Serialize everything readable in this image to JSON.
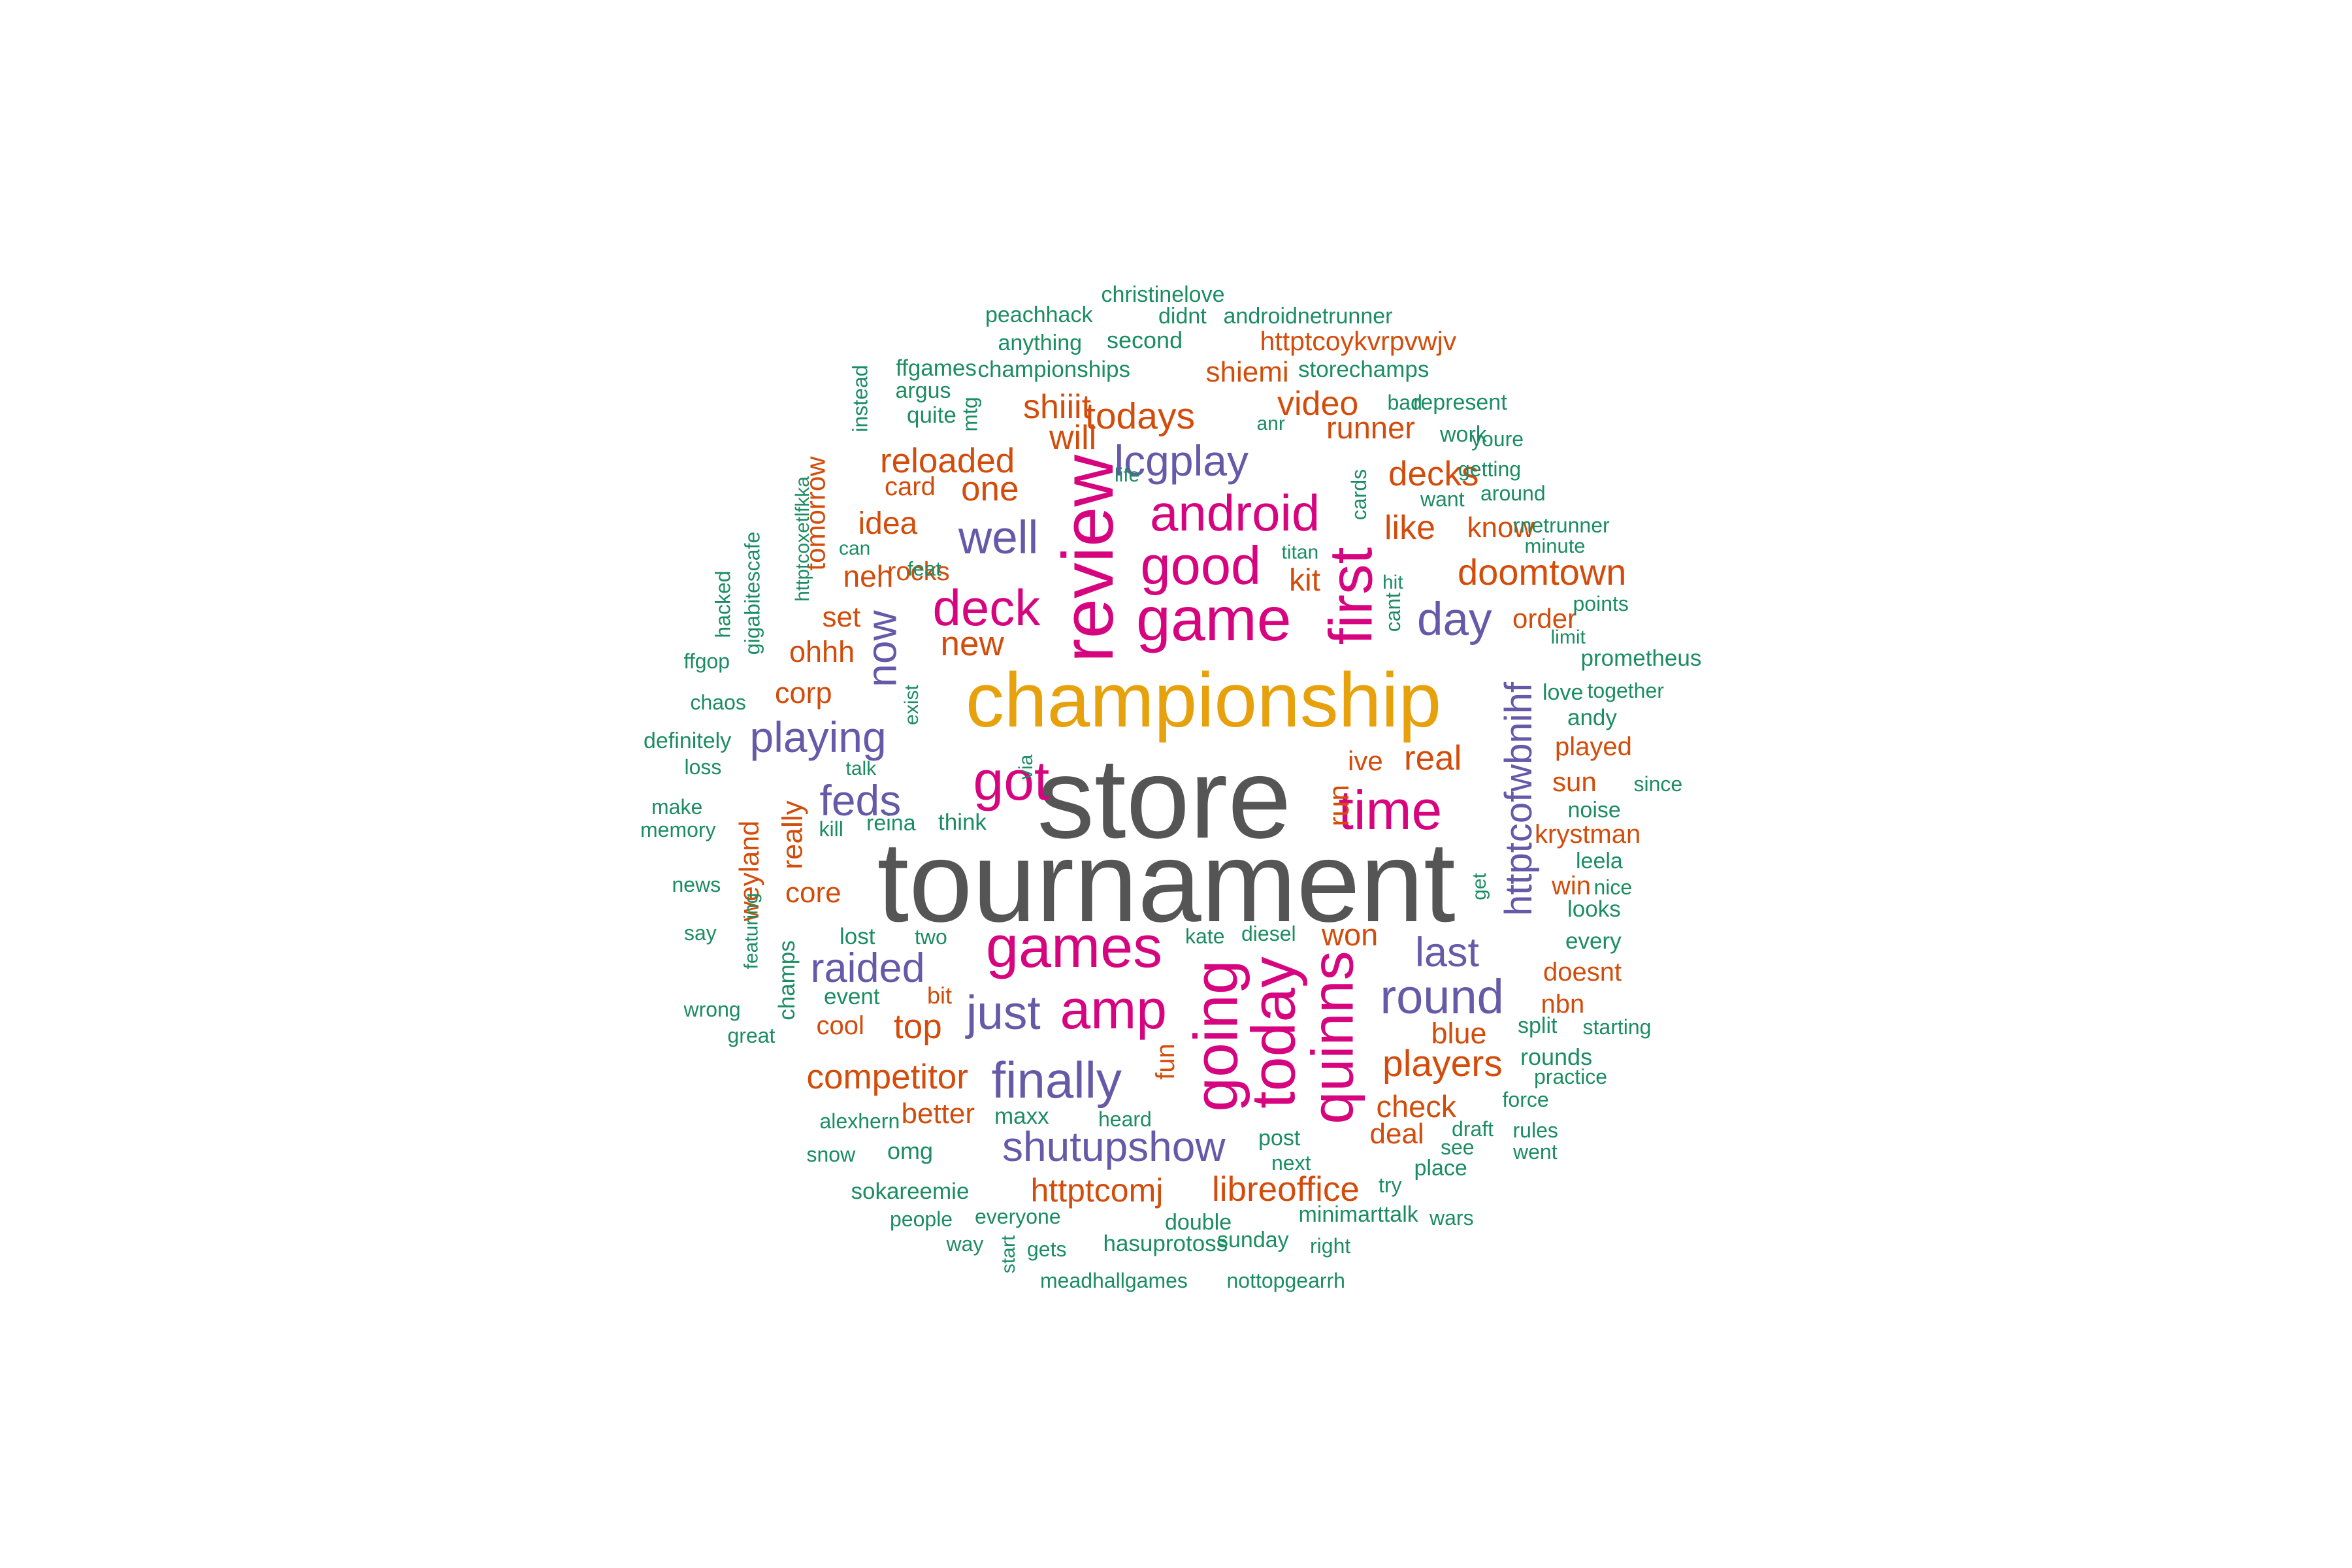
{
  "palette": {
    "gray": "#555555",
    "gold": "#E6A10C",
    "magenta": "#D6047F",
    "purple": "#6559A8",
    "orange": "#D24C0B",
    "green": "#1B8C63"
  },
  "words": [
    {
      "text": "store",
      "c": "gray",
      "r": 0
    },
    {
      "text": "tournament",
      "c": "gray",
      "r": 0
    },
    {
      "text": "championship",
      "c": "gold",
      "r": 0
    },
    {
      "text": "game",
      "c": "magenta",
      "r": 0
    },
    {
      "text": "good",
      "c": "magenta",
      "r": 0
    },
    {
      "text": "android",
      "c": "magenta",
      "r": 0
    },
    {
      "text": "review",
      "c": "magenta",
      "r": 1
    },
    {
      "text": "first",
      "c": "magenta",
      "r": 1
    },
    {
      "text": "deck",
      "c": "magenta",
      "r": 0
    },
    {
      "text": "got",
      "c": "magenta",
      "r": 0
    },
    {
      "text": "time",
      "c": "magenta",
      "r": 0
    },
    {
      "text": "games",
      "c": "magenta",
      "r": 0
    },
    {
      "text": "amp",
      "c": "magenta",
      "r": 0
    },
    {
      "text": "going",
      "c": "magenta",
      "r": 1
    },
    {
      "text": "today",
      "c": "magenta",
      "r": 1
    },
    {
      "text": "quinns",
      "c": "magenta",
      "r": 1
    },
    {
      "text": "well",
      "c": "purple",
      "r": 0
    },
    {
      "text": "lcgplay",
      "c": "purple",
      "r": 0
    },
    {
      "text": "playing",
      "c": "purple",
      "r": 0
    },
    {
      "text": "feds",
      "c": "purple",
      "r": 0
    },
    {
      "text": "now",
      "c": "purple",
      "r": 1
    },
    {
      "text": "day",
      "c": "purple",
      "r": 0
    },
    {
      "text": "httptcofwbnihf",
      "c": "purple",
      "r": 1
    },
    {
      "text": "round",
      "c": "purple",
      "r": 0
    },
    {
      "text": "last",
      "c": "purple",
      "r": 0
    },
    {
      "text": "raided",
      "c": "purple",
      "r": 0
    },
    {
      "text": "just",
      "c": "purple",
      "r": 0
    },
    {
      "text": "finally",
      "c": "purple",
      "r": 0
    },
    {
      "text": "shutupshow",
      "c": "purple",
      "r": 0
    },
    {
      "text": "todays",
      "c": "orange",
      "r": 0
    },
    {
      "text": "shiiit",
      "c": "orange",
      "r": 0
    },
    {
      "text": "will",
      "c": "orange",
      "r": 0
    },
    {
      "text": "video",
      "c": "orange",
      "r": 0
    },
    {
      "text": "runner",
      "c": "orange",
      "r": 0
    },
    {
      "text": "reloaded",
      "c": "orange",
      "r": 0
    },
    {
      "text": "one",
      "c": "orange",
      "r": 0
    },
    {
      "text": "decks",
      "c": "orange",
      "r": 0
    },
    {
      "text": "like",
      "c": "orange",
      "r": 0
    },
    {
      "text": "doomtown",
      "c": "orange",
      "r": 0
    },
    {
      "text": "kit",
      "c": "orange",
      "r": 0
    },
    {
      "text": "idea",
      "c": "orange",
      "r": 0
    },
    {
      "text": "neh",
      "c": "orange",
      "r": 0
    },
    {
      "text": "new",
      "c": "orange",
      "r": 0
    },
    {
      "text": "set",
      "c": "orange",
      "r": 0
    },
    {
      "text": "ohhh",
      "c": "orange",
      "r": 0
    },
    {
      "text": "corp",
      "c": "orange",
      "r": 0
    },
    {
      "text": "real",
      "c": "orange",
      "r": 0
    },
    {
      "text": "ive",
      "c": "orange",
      "r": 0
    },
    {
      "text": "run",
      "c": "orange",
      "r": 1
    },
    {
      "text": "won",
      "c": "orange",
      "r": 0
    },
    {
      "text": "players",
      "c": "orange",
      "r": 0
    },
    {
      "text": "blue",
      "c": "orange",
      "r": 0
    },
    {
      "text": "check",
      "c": "orange",
      "r": 0
    },
    {
      "text": "deal",
      "c": "orange",
      "r": 0
    },
    {
      "text": "top",
      "c": "orange",
      "r": 0
    },
    {
      "text": "competitor",
      "c": "orange",
      "r": 0
    },
    {
      "text": "better",
      "c": "orange",
      "r": 0
    },
    {
      "text": "httptcomj",
      "c": "orange",
      "r": 0
    },
    {
      "text": "libreoffice",
      "c": "orange",
      "r": 0
    },
    {
      "text": "core",
      "c": "orange",
      "r": 0
    },
    {
      "text": "really",
      "c": "orange",
      "r": 1
    },
    {
      "text": "weyland",
      "c": "orange",
      "r": 1
    },
    {
      "text": "tomorrow",
      "c": "orange",
      "r": 1
    },
    {
      "text": "card",
      "c": "orange",
      "r": 0
    },
    {
      "text": "rocks",
      "c": "orange",
      "r": 0
    },
    {
      "text": "httptcoykvrpvwjv",
      "c": "orange",
      "r": 0
    },
    {
      "text": "shiemi",
      "c": "orange",
      "r": 0
    },
    {
      "text": "know",
      "c": "orange",
      "r": 0
    },
    {
      "text": "order",
      "c": "orange",
      "r": 0
    },
    {
      "text": "played",
      "c": "orange",
      "r": 0
    },
    {
      "text": "sun",
      "c": "orange",
      "r": 0
    },
    {
      "text": "krystman",
      "c": "orange",
      "r": 0
    },
    {
      "text": "win",
      "c": "orange",
      "r": 0
    },
    {
      "text": "doesnt",
      "c": "orange",
      "r": 0
    },
    {
      "text": "nbn",
      "c": "orange",
      "r": 0
    },
    {
      "text": "fun",
      "c": "orange",
      "r": 1
    },
    {
      "text": "bit",
      "c": "orange",
      "r": 0
    },
    {
      "text": "cool",
      "c": "orange",
      "r": 0
    },
    {
      "text": "christinelove",
      "c": "green",
      "r": 0
    },
    {
      "text": "peachhack",
      "c": "green",
      "r": 0
    },
    {
      "text": "didnt",
      "c": "green",
      "r": 0
    },
    {
      "text": "androidnetrunner",
      "c": "green",
      "r": 0
    },
    {
      "text": "anything",
      "c": "green",
      "r": 0
    },
    {
      "text": "second",
      "c": "green",
      "r": 0
    },
    {
      "text": "ffgames",
      "c": "green",
      "r": 0
    },
    {
      "text": "championships",
      "c": "green",
      "r": 0
    },
    {
      "text": "storechamps",
      "c": "green",
      "r": 0
    },
    {
      "text": "argus",
      "c": "green",
      "r": 0
    },
    {
      "text": "instead",
      "c": "green",
      "r": 1
    },
    {
      "text": "quite",
      "c": "green",
      "r": 0
    },
    {
      "text": "mtg",
      "c": "green",
      "r": 1
    },
    {
      "text": "bad",
      "c": "green",
      "r": 0
    },
    {
      "text": "represent",
      "c": "green",
      "r": 0
    },
    {
      "text": "anr",
      "c": "green",
      "r": 0
    },
    {
      "text": "work",
      "c": "green",
      "r": 0
    },
    {
      "text": "youre",
      "c": "green",
      "r": 0
    },
    {
      "text": "life",
      "c": "green",
      "r": 0
    },
    {
      "text": "getting",
      "c": "green",
      "r": 0
    },
    {
      "text": "cards",
      "c": "green",
      "r": 1
    },
    {
      "text": "want",
      "c": "green",
      "r": 0
    },
    {
      "text": "around",
      "c": "green",
      "r": 0
    },
    {
      "text": "rnetrunner",
      "c": "green",
      "r": 0
    },
    {
      "text": "httptcoxetlfkka",
      "c": "green",
      "r": 1
    },
    {
      "text": "can",
      "c": "green",
      "r": 0
    },
    {
      "text": "titan",
      "c": "green",
      "r": 0
    },
    {
      "text": "minute",
      "c": "green",
      "r": 0
    },
    {
      "text": "gigabitescafe",
      "c": "green",
      "r": 1
    },
    {
      "text": "feat",
      "c": "green",
      "r": 0
    },
    {
      "text": "hit",
      "c": "green",
      "r": 0
    },
    {
      "text": "hacked",
      "c": "green",
      "r": 1
    },
    {
      "text": "cant",
      "c": "green",
      "r": 1
    },
    {
      "text": "points",
      "c": "green",
      "r": 0
    },
    {
      "text": "limit",
      "c": "green",
      "r": 0
    },
    {
      "text": "ffgop",
      "c": "green",
      "r": 0
    },
    {
      "text": "prometheus",
      "c": "green",
      "r": 0
    },
    {
      "text": "chaos",
      "c": "green",
      "r": 0
    },
    {
      "text": "love",
      "c": "green",
      "r": 0
    },
    {
      "text": "together",
      "c": "green",
      "r": 0
    },
    {
      "text": "exist",
      "c": "green",
      "r": 1
    },
    {
      "text": "andy",
      "c": "green",
      "r": 0
    },
    {
      "text": "definitely",
      "c": "green",
      "r": 0
    },
    {
      "text": "talk",
      "c": "green",
      "r": 0
    },
    {
      "text": "via",
      "c": "green",
      "r": 1
    },
    {
      "text": "loss",
      "c": "green",
      "r": 0
    },
    {
      "text": "since",
      "c": "green",
      "r": 0
    },
    {
      "text": "make",
      "c": "green",
      "r": 0
    },
    {
      "text": "kill",
      "c": "green",
      "r": 0
    },
    {
      "text": "reina",
      "c": "green",
      "r": 0
    },
    {
      "text": "think",
      "c": "green",
      "r": 0
    },
    {
      "text": "noise",
      "c": "green",
      "r": 0
    },
    {
      "text": "memory",
      "c": "green",
      "r": 0
    },
    {
      "text": "leela",
      "c": "green",
      "r": 0
    },
    {
      "text": "get",
      "c": "green",
      "r": 1
    },
    {
      "text": "news",
      "c": "green",
      "r": 0
    },
    {
      "text": "nice",
      "c": "green",
      "r": 0
    },
    {
      "text": "looks",
      "c": "green",
      "r": 0
    },
    {
      "text": "say",
      "c": "green",
      "r": 0
    },
    {
      "text": "featuring",
      "c": "green",
      "r": 1
    },
    {
      "text": "lost",
      "c": "green",
      "r": 0
    },
    {
      "text": "two",
      "c": "green",
      "r": 0
    },
    {
      "text": "kate",
      "c": "green",
      "r": 0
    },
    {
      "text": "diesel",
      "c": "green",
      "r": 0
    },
    {
      "text": "every",
      "c": "green",
      "r": 0
    },
    {
      "text": "champs",
      "c": "green",
      "r": 1
    },
    {
      "text": "event",
      "c": "green",
      "r": 0
    },
    {
      "text": "wrong",
      "c": "green",
      "r": 0
    },
    {
      "text": "great",
      "c": "green",
      "r": 0
    },
    {
      "text": "split",
      "c": "green",
      "r": 0
    },
    {
      "text": "starting",
      "c": "green",
      "r": 0
    },
    {
      "text": "rounds",
      "c": "green",
      "r": 0
    },
    {
      "text": "practice",
      "c": "green",
      "r": 0
    },
    {
      "text": "force",
      "c": "green",
      "r": 0
    },
    {
      "text": "alexhern",
      "c": "green",
      "r": 0
    },
    {
      "text": "maxx",
      "c": "green",
      "r": 0
    },
    {
      "text": "heard",
      "c": "green",
      "r": 0
    },
    {
      "text": "draft",
      "c": "green",
      "r": 0
    },
    {
      "text": "rules",
      "c": "green",
      "r": 0
    },
    {
      "text": "snow",
      "c": "green",
      "r": 0
    },
    {
      "text": "omg",
      "c": "green",
      "r": 0
    },
    {
      "text": "post",
      "c": "green",
      "r": 0
    },
    {
      "text": "see",
      "c": "green",
      "r": 0
    },
    {
      "text": "went",
      "c": "green",
      "r": 0
    },
    {
      "text": "next",
      "c": "green",
      "r": 0
    },
    {
      "text": "place",
      "c": "green",
      "r": 0
    },
    {
      "text": "sokareemie",
      "c": "green",
      "r": 0
    },
    {
      "text": "try",
      "c": "green",
      "r": 0
    },
    {
      "text": "people",
      "c": "green",
      "r": 0
    },
    {
      "text": "everyone",
      "c": "green",
      "r": 0
    },
    {
      "text": "double",
      "c": "green",
      "r": 0
    },
    {
      "text": "minimarttalk",
      "c": "green",
      "r": 0
    },
    {
      "text": "wars",
      "c": "green",
      "r": 0
    },
    {
      "text": "way",
      "c": "green",
      "r": 0
    },
    {
      "text": "gets",
      "c": "green",
      "r": 0
    },
    {
      "text": "hasuprotoss",
      "c": "green",
      "r": 0
    },
    {
      "text": "sunday",
      "c": "green",
      "r": 0
    },
    {
      "text": "right",
      "c": "green",
      "r": 0
    },
    {
      "text": "start",
      "c": "green",
      "r": 1
    },
    {
      "text": "meadhallgames",
      "c": "green",
      "r": 0
    },
    {
      "text": "nottopgearrh",
      "c": "green",
      "r": 0
    }
  ]
}
